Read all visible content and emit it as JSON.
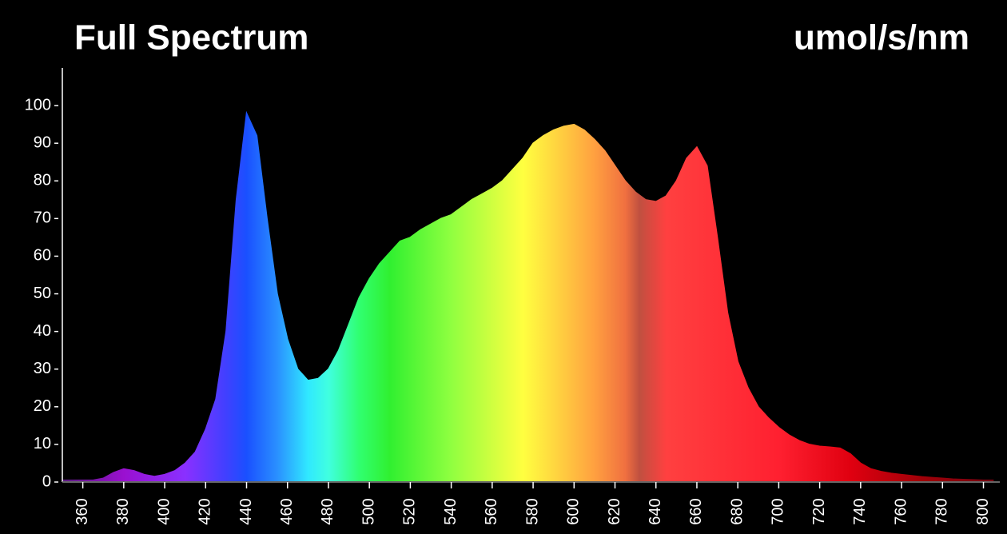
{
  "chart_data": {
    "type": "area",
    "title": "Full Spectrum",
    "unit_label": "umol/s/nm",
    "x": [
      350,
      355,
      360,
      365,
      370,
      375,
      380,
      385,
      390,
      395,
      400,
      405,
      410,
      415,
      420,
      425,
      430,
      435,
      440,
      445,
      450,
      455,
      460,
      465,
      470,
      475,
      480,
      485,
      490,
      495,
      500,
      505,
      510,
      515,
      520,
      525,
      530,
      535,
      540,
      545,
      550,
      555,
      560,
      565,
      570,
      575,
      580,
      585,
      590,
      595,
      600,
      605,
      610,
      615,
      620,
      625,
      630,
      635,
      640,
      645,
      650,
      655,
      660,
      665,
      670,
      675,
      680,
      685,
      690,
      695,
      700,
      705,
      710,
      715,
      720,
      725,
      730,
      735,
      740,
      745,
      750,
      755,
      760,
      765,
      770,
      775,
      780,
      785,
      790,
      795,
      800,
      805
    ],
    "values": [
      0.5,
      0.5,
      0.5,
      0.5,
      1,
      2.5,
      3.5,
      3,
      2,
      1.5,
      2,
      3,
      5,
      8,
      14,
      22,
      40,
      75,
      98,
      92,
      70,
      50,
      38,
      30,
      27,
      27.5,
      30,
      35,
      42,
      49,
      54,
      58,
      61,
      64,
      65,
      67,
      68.5,
      70,
      71,
      73,
      75,
      76.5,
      78,
      80,
      83,
      86,
      90,
      92,
      93.5,
      94.5,
      95,
      93.5,
      91,
      88,
      84,
      80,
      77,
      75,
      74.5,
      76,
      80,
      86,
      89,
      84,
      65,
      45,
      32,
      25,
      20,
      17,
      14.5,
      12.5,
      11,
      10,
      9.5,
      9.3,
      9,
      7.5,
      5,
      3.5,
      2.8,
      2.3,
      2,
      1.7,
      1.4,
      1.2,
      1,
      0.8,
      0.7,
      0.6,
      0.5,
      0.5
    ],
    "xlim": [
      350,
      808
    ],
    "ylim": [
      0,
      110
    ],
    "xticks": [
      360,
      380,
      400,
      420,
      440,
      460,
      480,
      500,
      520,
      540,
      560,
      580,
      600,
      620,
      640,
      660,
      680,
      700,
      720,
      740,
      760,
      780,
      800
    ],
    "yticks": [
      0,
      10,
      20,
      30,
      40,
      50,
      60,
      70,
      80,
      90,
      100
    ]
  }
}
